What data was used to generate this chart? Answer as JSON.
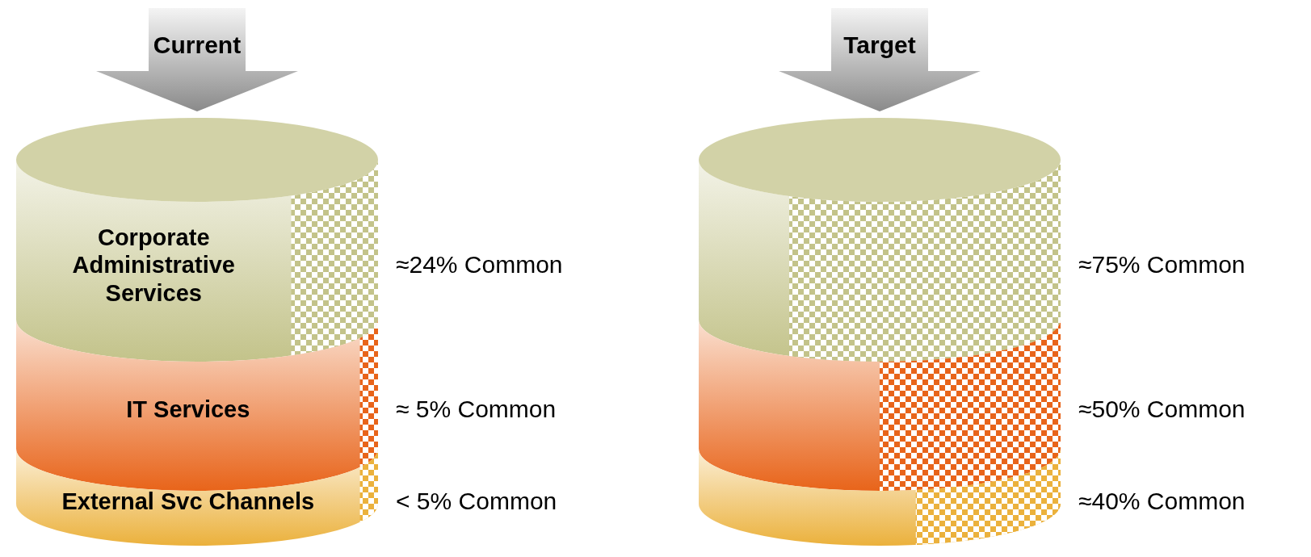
{
  "chart_data": [
    {
      "type": "other",
      "title": "Current",
      "categories": [
        "Corporate Administrative Services",
        "IT Services",
        "External Svc Channels"
      ],
      "values": [
        24,
        5,
        5
      ],
      "value_labels": [
        "≈24% Common",
        "≈ 5% Common",
        "< 5% Common"
      ],
      "colors": [
        "#c3c38a",
        "#e8641a",
        "#ebb13c"
      ]
    },
    {
      "type": "other",
      "title": "Target",
      "categories": [
        null,
        null,
        null
      ],
      "values": [
        75,
        50,
        40
      ],
      "value_labels": [
        "≈75% Common",
        "≈50% Common",
        "≈40% Common"
      ],
      "colors": [
        "#c3c38a",
        "#e8641a",
        "#ebb13c"
      ]
    }
  ]
}
